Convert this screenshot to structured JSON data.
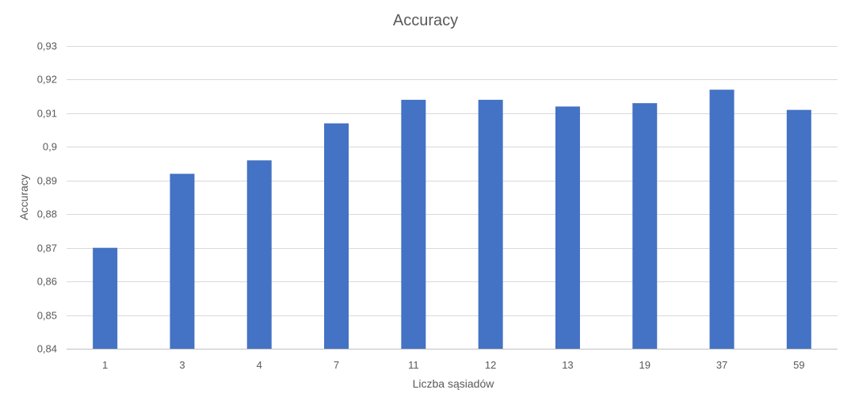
{
  "chart_data": {
    "type": "bar",
    "title": "Accuracy",
    "xlabel": "Liczba sąsiadów",
    "ylabel": "Accuracy",
    "categories": [
      "1",
      "3",
      "4",
      "7",
      "11",
      "12",
      "13",
      "19",
      "37",
      "59"
    ],
    "values": [
      0.87,
      0.892,
      0.896,
      0.907,
      0.914,
      0.914,
      0.912,
      0.913,
      0.917,
      0.911
    ],
    "ylim": [
      0.84,
      0.93
    ],
    "yticks": [
      0.84,
      0.85,
      0.86,
      0.87,
      0.88,
      0.89,
      0.9,
      0.91,
      0.92,
      0.93
    ],
    "ytick_labels": [
      "0,84",
      "0,85",
      "0,86",
      "0,87",
      "0,88",
      "0,89",
      "0,9",
      "0,91",
      "0,92",
      "0,93"
    ],
    "grid": true,
    "legend": "none",
    "colors": {
      "bar": "#4472C4",
      "grid": "#D9D9D9",
      "axis": "#BFBFBF",
      "text": "#595959"
    }
  }
}
